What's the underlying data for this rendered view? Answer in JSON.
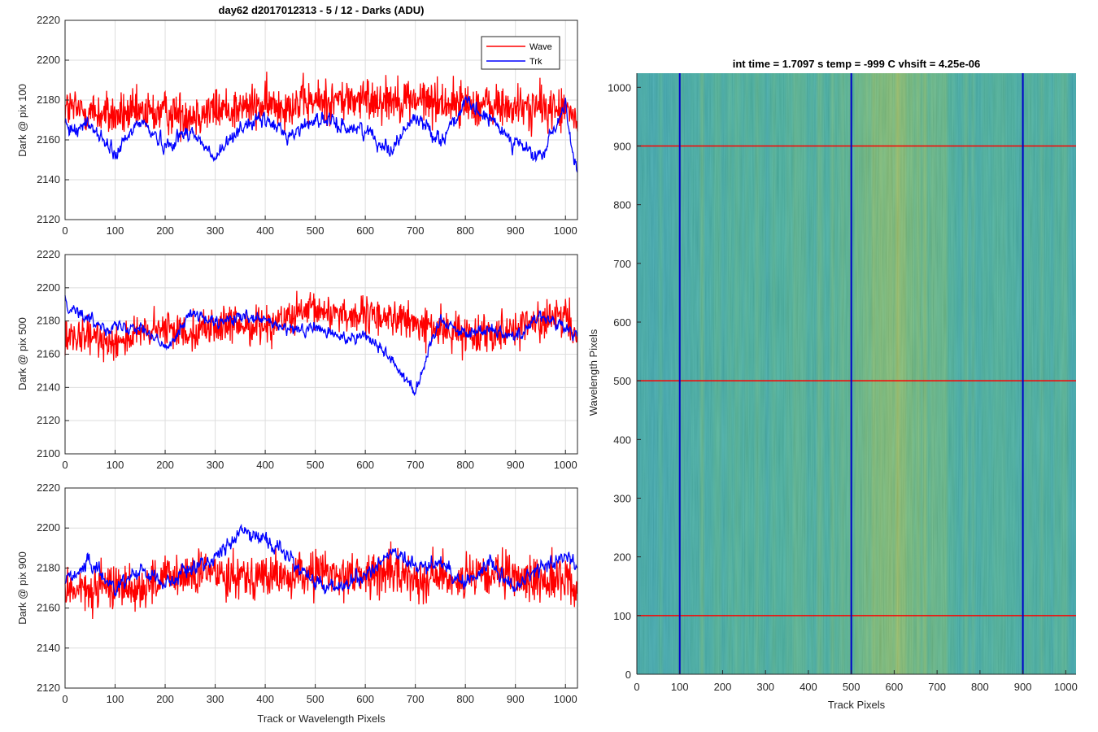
{
  "figure_title": "day62 d2017012313 - 5 / 12 - Darks (ADU)",
  "colors": {
    "wave": "#ff0000",
    "trk": "#0000ff",
    "grid": "#dedede",
    "axis": "#262626"
  },
  "chart_data": [
    {
      "type": "line",
      "ylabel": "Dark @ pix 100",
      "xlabel": "",
      "xlim": [
        0,
        1024
      ],
      "ylim": [
        2120,
        2220
      ],
      "yticks": [
        2120,
        2140,
        2160,
        2180,
        2200,
        2220
      ],
      "xticks": [
        0,
        100,
        200,
        300,
        400,
        500,
        600,
        700,
        800,
        900,
        1000
      ],
      "grid": true,
      "legend_position": "top-right",
      "series": [
        {
          "name": "Wave",
          "color": "#ff0000",
          "x": [
            0,
            50,
            100,
            150,
            200,
            250,
            300,
            350,
            400,
            450,
            500,
            550,
            600,
            650,
            700,
            750,
            800,
            850,
            900,
            950,
            1000,
            1024
          ],
          "values": [
            2176,
            2174,
            2172,
            2173,
            2174,
            2173,
            2175,
            2176,
            2177,
            2178,
            2179,
            2180,
            2180,
            2181,
            2180,
            2179,
            2178,
            2177,
            2176,
            2176,
            2175,
            2170
          ]
        },
        {
          "name": "Trk",
          "color": "#0000ff",
          "x": [
            0,
            50,
            100,
            150,
            200,
            250,
            300,
            350,
            400,
            450,
            500,
            550,
            600,
            650,
            700,
            750,
            800,
            850,
            900,
            950,
            1000,
            1024
          ],
          "values": [
            2165,
            2168,
            2152,
            2170,
            2157,
            2165,
            2150,
            2167,
            2170,
            2162,
            2171,
            2167,
            2165,
            2155,
            2172,
            2160,
            2178,
            2170,
            2159,
            2150,
            2178,
            2140
          ]
        }
      ]
    },
    {
      "type": "line",
      "ylabel": "Dark @ pix 500",
      "xlabel": "",
      "xlim": [
        0,
        1024
      ],
      "ylim": [
        2100,
        2220
      ],
      "yticks": [
        2100,
        2120,
        2140,
        2160,
        2180,
        2200,
        2220
      ],
      "xticks": [
        0,
        100,
        200,
        300,
        400,
        500,
        600,
        700,
        800,
        900,
        1000
      ],
      "grid": true,
      "series": [
        {
          "name": "Wave",
          "color": "#ff0000",
          "x": [
            0,
            50,
            100,
            150,
            200,
            250,
            300,
            350,
            400,
            450,
            500,
            550,
            600,
            650,
            700,
            750,
            800,
            850,
            900,
            950,
            1000,
            1024
          ],
          "values": [
            2168,
            2170,
            2168,
            2172,
            2175,
            2174,
            2177,
            2177,
            2178,
            2182,
            2186,
            2185,
            2182,
            2183,
            2178,
            2175,
            2172,
            2174,
            2176,
            2180,
            2182,
            2170
          ]
        },
        {
          "name": "Trk",
          "color": "#0000ff",
          "x": [
            0,
            50,
            100,
            150,
            200,
            250,
            300,
            350,
            400,
            450,
            500,
            550,
            600,
            650,
            700,
            750,
            800,
            850,
            900,
            950,
            1000,
            1024
          ],
          "values": [
            2192,
            2180,
            2176,
            2178,
            2163,
            2185,
            2178,
            2182,
            2180,
            2174,
            2176,
            2170,
            2172,
            2158,
            2138,
            2182,
            2172,
            2176,
            2170,
            2184,
            2175,
            2170
          ]
        }
      ]
    },
    {
      "type": "line",
      "ylabel": "Dark @ pix 900",
      "xlabel": "Track or Wavelength Pixels",
      "xlim": [
        0,
        1024
      ],
      "ylim": [
        2120,
        2220
      ],
      "yticks": [
        2120,
        2140,
        2160,
        2180,
        2200,
        2220
      ],
      "xticks": [
        0,
        100,
        200,
        300,
        400,
        500,
        600,
        700,
        800,
        900,
        1000
      ],
      "grid": true,
      "series": [
        {
          "name": "Wave",
          "color": "#ff0000",
          "x": [
            0,
            50,
            100,
            150,
            200,
            250,
            300,
            350,
            400,
            450,
            500,
            550,
            600,
            650,
            700,
            750,
            800,
            850,
            900,
            950,
            1000,
            1024
          ],
          "values": [
            2170,
            2168,
            2172,
            2170,
            2175,
            2176,
            2178,
            2177,
            2176,
            2175,
            2178,
            2177,
            2176,
            2178,
            2175,
            2176,
            2174,
            2176,
            2175,
            2174,
            2175,
            2168
          ]
        },
        {
          "name": "Trk",
          "color": "#0000ff",
          "x": [
            0,
            50,
            100,
            150,
            200,
            250,
            300,
            350,
            400,
            450,
            500,
            550,
            600,
            650,
            700,
            750,
            800,
            850,
            900,
            950,
            1000,
            1024
          ],
          "values": [
            2175,
            2182,
            2170,
            2180,
            2172,
            2180,
            2185,
            2198,
            2195,
            2185,
            2172,
            2170,
            2176,
            2188,
            2180,
            2183,
            2172,
            2183,
            2170,
            2180,
            2186,
            2182
          ]
        }
      ]
    },
    {
      "type": "heatmap",
      "title": "int time = 1.7097 s    temp = -999 C    vhsift = 4.25e-06",
      "xlabel": "Track Pixels",
      "ylabel": "Wavelength Pixels",
      "xlim": [
        0,
        1024
      ],
      "ylim": [
        0,
        1024
      ],
      "xticks": [
        0,
        100,
        200,
        300,
        400,
        500,
        600,
        700,
        800,
        900,
        1000
      ],
      "yticks": [
        0,
        100,
        200,
        300,
        400,
        500,
        600,
        700,
        800,
        900,
        1000
      ],
      "colormap": "parula",
      "colormap_colors": [
        "#1f8fc4",
        "#2ba0b5",
        "#3aad9a",
        "#6bb873",
        "#a6bd52",
        "#d3b842"
      ],
      "column_profile": {
        "x": [
          0,
          50,
          100,
          150,
          200,
          250,
          300,
          350,
          400,
          450,
          500,
          550,
          600,
          650,
          700,
          750,
          800,
          850,
          900,
          950,
          1000,
          1024
        ],
        "level": [
          0.3,
          0.32,
          0.34,
          0.36,
          0.38,
          0.4,
          0.4,
          0.4,
          0.42,
          0.44,
          0.5,
          0.62,
          0.68,
          0.6,
          0.48,
          0.42,
          0.4,
          0.38,
          0.4,
          0.4,
          0.36,
          0.34
        ]
      },
      "vertical_markers": {
        "values": [
          100,
          500,
          900
        ],
        "color": "#0000c8"
      },
      "horizontal_markers": {
        "values": [
          100,
          500,
          900
        ],
        "color": "#ff0000"
      }
    }
  ]
}
